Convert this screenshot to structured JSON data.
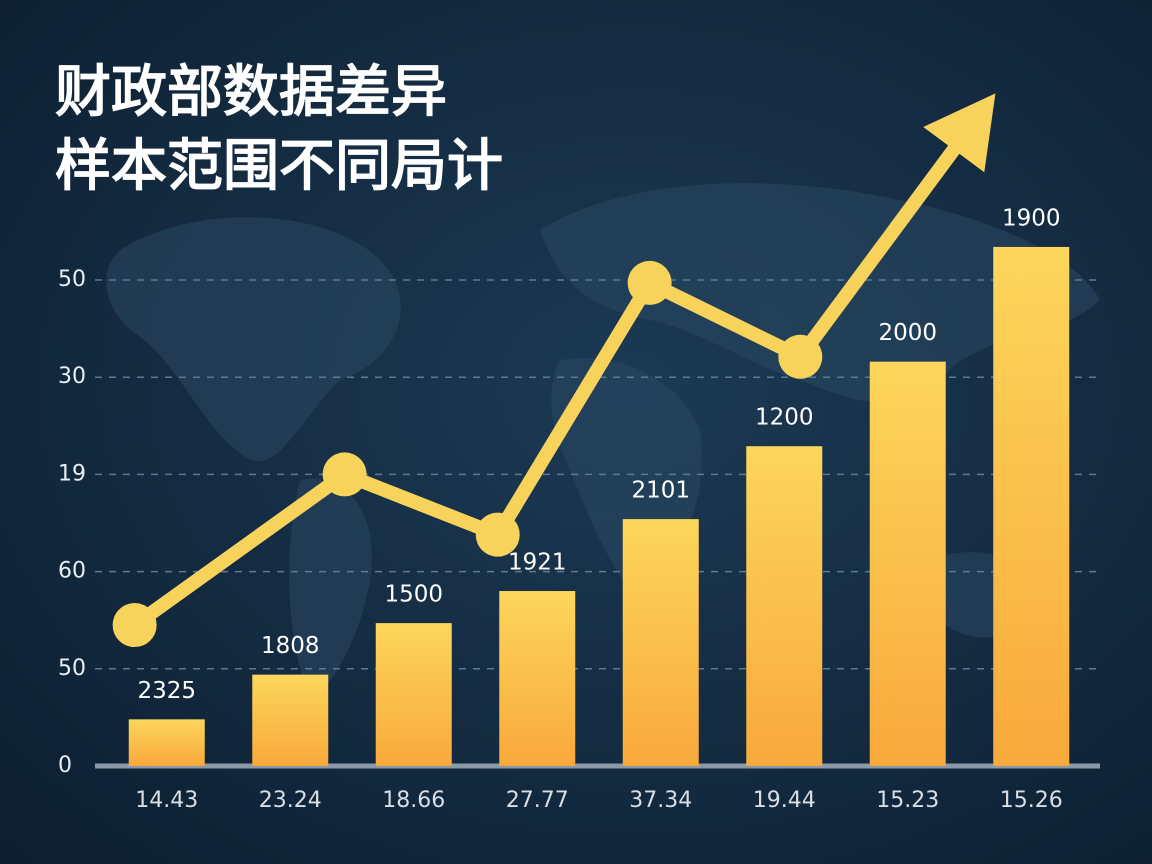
{
  "chart_data": {
    "type": "bar",
    "title_lines": [
      "财政部数据差异",
      "样本范围不同局计"
    ],
    "categories": [
      "14.43",
      "23.24",
      "18.66",
      "27.77",
      "37.34",
      "19.44",
      "15.23",
      "15.26"
    ],
    "values": [
      0.48,
      0.94,
      1.47,
      1.8,
      2.54,
      3.29,
      4.16,
      5.34
    ],
    "bar_labels": [
      "2325",
      "1808",
      "1500",
      "1921",
      "2101",
      "1200",
      "2000",
      "1900"
    ],
    "bar_colors": [
      "#fcd65c",
      "#f9a93b"
    ],
    "ylim": [
      0,
      7.5
    ],
    "yticks": [
      {
        "value": 0,
        "label": "0"
      },
      {
        "value": 1,
        "label": "50"
      },
      {
        "value": 2,
        "label": "60"
      },
      {
        "value": 3,
        "label": "19"
      },
      {
        "value": 4,
        "label": "30"
      },
      {
        "value": 5,
        "label": "50"
      }
    ],
    "grid": true,
    "xlim": [
      -0.5,
      7.5
    ],
    "trend": {
      "type": "line",
      "color": "#f8d35c",
      "x": [
        -0.26,
        1.44,
        2.68,
        3.91,
        5.13,
        6.71
      ],
      "values": [
        1.45,
        3.0,
        2.38,
        4.97,
        4.21,
        6.92
      ],
      "markers": [
        true,
        true,
        true,
        true,
        true,
        false
      ],
      "arrow": true
    }
  }
}
